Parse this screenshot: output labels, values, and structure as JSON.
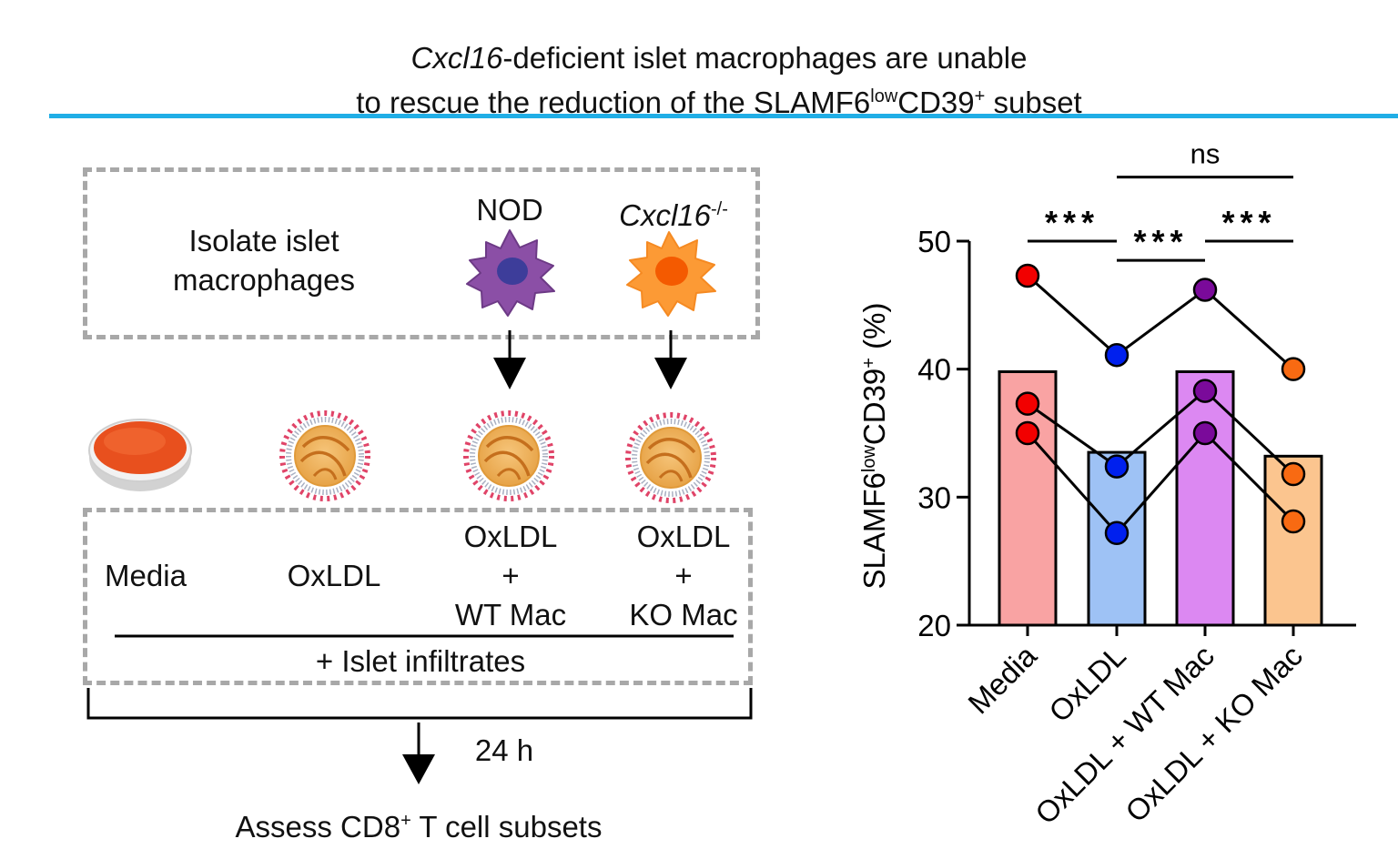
{
  "title": {
    "gene": "Cxcl16",
    "line1_rest": "-deficient islet macrophages are unable",
    "line2_a": "to rescue the reduction of the SLAMF6",
    "line2_sup": "low",
    "line2_b": "CD39",
    "line2_sup2": "+",
    "line2_c": " subset"
  },
  "diagram": {
    "isolate_line1": "Isolate islet",
    "isolate_line2": "macrophages",
    "source_wt": "NOD",
    "source_ko": "Cxcl16",
    "source_ko_sup": "-/-",
    "cond_media": "Media",
    "cond_oxldl": "OxLDL",
    "cond3_line1": "OxLDL",
    "cond3_line2": "+",
    "cond3_line3": "WT Mac",
    "cond4_line1": "OxLDL",
    "cond4_line2": "+",
    "cond4_line3": "KO Mac",
    "infiltrates": "+ Islet infiltrates",
    "duration": "24 h",
    "assess_a": "Assess CD8",
    "assess_sup": "+",
    "assess_b": " T cell subsets"
  },
  "chart_data": {
    "type": "bar",
    "categories": [
      "Media",
      "OxLDL",
      "OxLDL + WT Mac",
      "OxLDL + KO Mac"
    ],
    "values": [
      39.8,
      33.5,
      39.8,
      33.2
    ],
    "bar_colors": [
      "#f9a3a3",
      "#9ec2f5",
      "#dc88f2",
      "#fbc58f"
    ],
    "point_colors": [
      "#f20000",
      "#0020ee",
      "#7a0a9a",
      "#f86a12"
    ],
    "replicates": [
      [
        47.3,
        41.1,
        46.2,
        40.0
      ],
      [
        37.3,
        32.4,
        38.3,
        31.8
      ],
      [
        35.0,
        27.2,
        35.0,
        28.1
      ]
    ],
    "ylabel_a": "SLAMF6",
    "ylabel_sup": "low",
    "ylabel_b": "CD39",
    "ylabel_sup2": "+",
    "ylabel_c": " (%)",
    "ylim": [
      20,
      50
    ],
    "yticks": [
      "20",
      "30",
      "40",
      "50"
    ],
    "significance": [
      {
        "from": 0,
        "to": 1,
        "label": "***",
        "level": 50.0
      },
      {
        "from": 1,
        "to": 2,
        "label": "***",
        "level": 48.5
      },
      {
        "from": 2,
        "to": 3,
        "label": "***",
        "level": 50.0
      },
      {
        "from": 1,
        "to": 3,
        "label": "ns",
        "level": 55.0
      }
    ]
  }
}
